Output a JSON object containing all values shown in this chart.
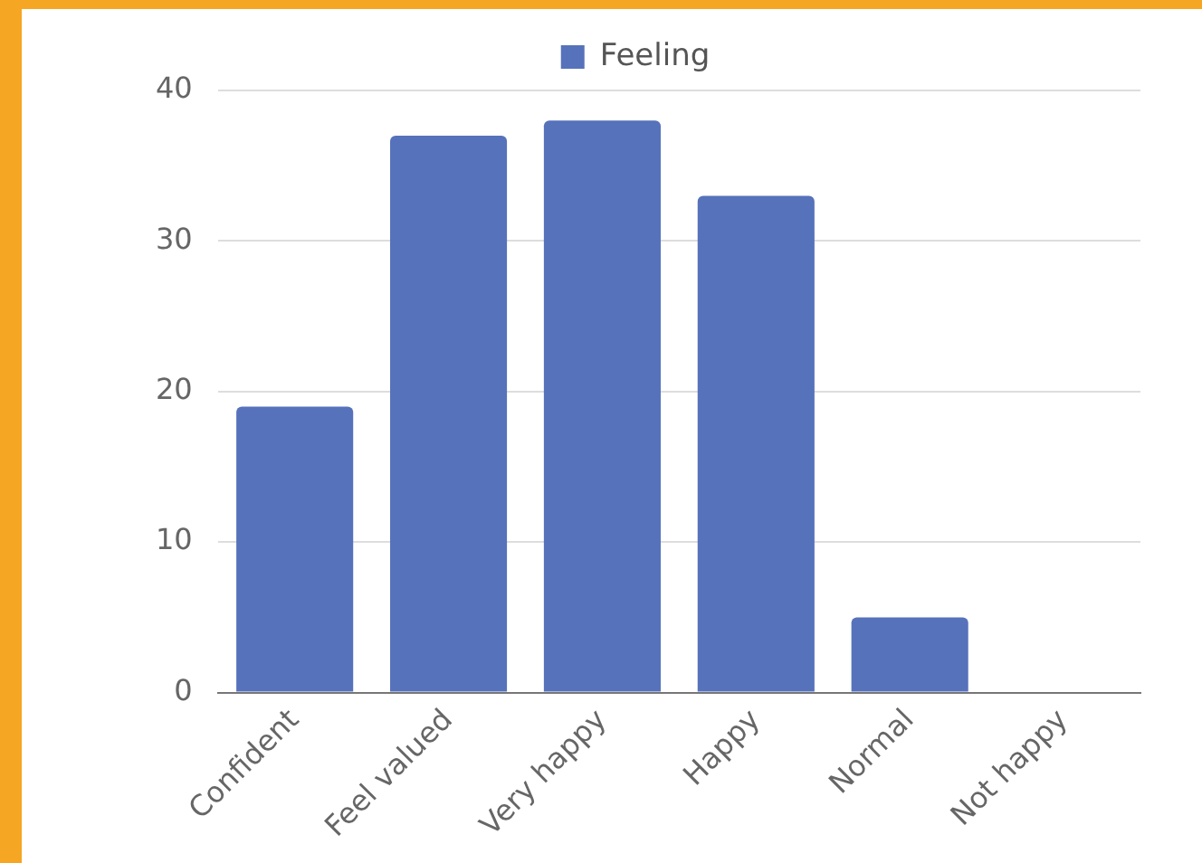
{
  "chart_data": {
    "type": "bar",
    "categories": [
      "Confident",
      "Feel valued",
      "Very happy",
      "Happy",
      "Normal",
      "Not happy"
    ],
    "series": [
      {
        "name": "Feeling",
        "color": "#5672bb",
        "values": [
          19,
          37,
          38,
          33,
          5,
          0
        ]
      }
    ],
    "ylim": [
      0,
      40
    ],
    "yticks": [
      0,
      10,
      20,
      30,
      40
    ],
    "grid": "y",
    "legend": "top"
  }
}
